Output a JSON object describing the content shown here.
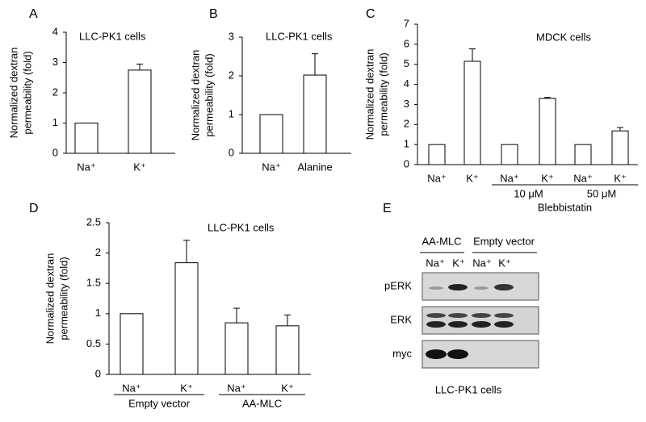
{
  "chart_data": [
    {
      "type": "bar",
      "panel": "A",
      "title": "LLC-PK1 cells",
      "ylabel": [
        "Normalized dextran",
        "permeability (fold)"
      ],
      "groups": [
        {
          "categories": [
            "Na⁺",
            "K⁺"
          ],
          "values": [
            1,
            2.75
          ],
          "errors": [
            null,
            0.2
          ]
        }
      ],
      "ylim": [
        0,
        4
      ],
      "yticks": [
        0,
        1,
        2,
        3,
        4
      ],
      "color": "#ffffff"
    },
    {
      "type": "bar",
      "panel": "B",
      "title": "LLC-PK1 cells",
      "ylabel": [
        "Normalized dextran",
        "permeability (fold)"
      ],
      "groups": [
        {
          "categories": [
            "Na⁺",
            "Alanine"
          ],
          "values": [
            1,
            2.02
          ],
          "errors": [
            null,
            0.55
          ]
        }
      ],
      "ylim": [
        0,
        3
      ],
      "yticks": [
        0,
        1,
        2,
        3
      ],
      "color": "#ffffff"
    },
    {
      "type": "bar",
      "panel": "C",
      "title": "MDCK cells",
      "ylabel": [
        "Normalized dextran",
        "permeability (fold)"
      ],
      "groups": [
        {
          "categories": [
            "Na⁺",
            "K⁺"
          ],
          "values": [
            1,
            5.15
          ],
          "errors": [
            null,
            0.62
          ]
        },
        {
          "label": "10 μM",
          "categories": [
            "Na⁺",
            "K⁺"
          ],
          "values": [
            1,
            3.3
          ],
          "errors": [
            null,
            0.05
          ]
        },
        {
          "label": "50 μM",
          "categories": [
            "Na⁺",
            "K⁺"
          ],
          "values": [
            1,
            1.68
          ],
          "errors": [
            null,
            0.17
          ]
        }
      ],
      "group_caption": "Blebbistatin",
      "ylim": [
        0,
        7
      ],
      "yticks": [
        0,
        1,
        2,
        3,
        4,
        5,
        6,
        7
      ],
      "color": "#ffffff"
    },
    {
      "type": "bar",
      "panel": "D",
      "title": "LLC-PK1 cells",
      "ylabel": [
        "Normalized dextran",
        "permeability (fold)"
      ],
      "groups": [
        {
          "label": "Empty vector",
          "categories": [
            "Na⁺",
            "K⁺"
          ],
          "values": [
            1,
            1.84
          ],
          "errors": [
            null,
            0.37
          ]
        },
        {
          "label": "AA-MLC",
          "categories": [
            "Na⁺",
            "K⁺"
          ],
          "values": [
            0.85,
            0.8
          ],
          "errors": [
            0.24,
            0.18
          ]
        }
      ],
      "ylim": [
        0,
        2.5
      ],
      "yticks": [
        0,
        0.5,
        1,
        1.5,
        2,
        2.5
      ],
      "color": "#ffffff"
    }
  ],
  "blot": {
    "panel": "E",
    "title": "LLC-PK1 cells",
    "groups": [
      "AA-MLC",
      "Empty vector"
    ],
    "lanes": [
      "Na⁺",
      "K⁺",
      "Na⁺",
      "K⁺"
    ],
    "rows": [
      "pERK",
      "ERK",
      "myc"
    ]
  }
}
